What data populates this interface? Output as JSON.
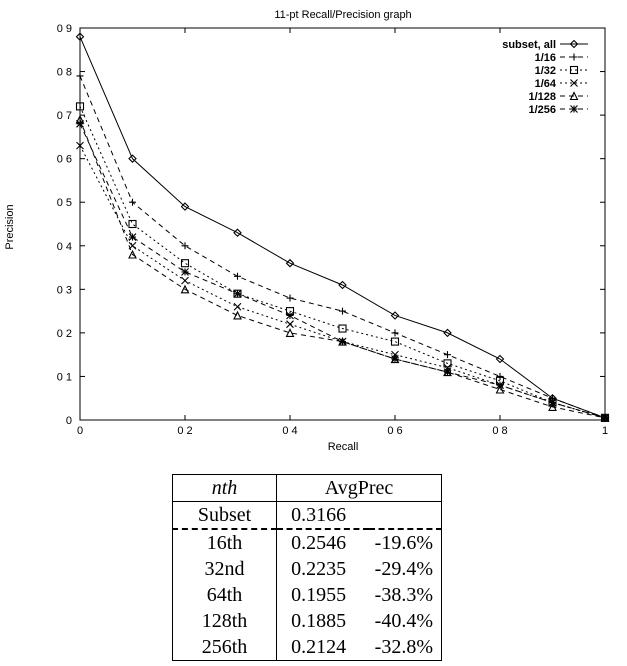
{
  "chart_data": {
    "type": "line",
    "title": "11-pt Recall/Precision graph",
    "xlabel": "Recall",
    "ylabel": "Precision",
    "xlim": [
      0,
      1
    ],
    "ylim": [
      0,
      0.9
    ],
    "xticks": [
      "0",
      "0 2",
      "0 4",
      "0 6",
      "0 8",
      "1"
    ],
    "yticks": [
      "0",
      "0 1",
      "0 2",
      "0 3",
      "0 4",
      "0 5",
      "0 6",
      "0 7",
      "0 8",
      "0 9"
    ],
    "grid": false,
    "legend_position": "top-right",
    "x": [
      0,
      0.1,
      0.2,
      0.3,
      0.4,
      0.5,
      0.6,
      0.7,
      0.8,
      0.9,
      1.0
    ],
    "series": [
      {
        "name": "subset, all",
        "marker": "diamond",
        "dash": "solid",
        "values": [
          0.88,
          0.6,
          0.49,
          0.43,
          0.36,
          0.31,
          0.24,
          0.2,
          0.14,
          0.05,
          0.005
        ]
      },
      {
        "name": "1/16",
        "marker": "plus",
        "dash": "dashed",
        "values": [
          0.79,
          0.5,
          0.4,
          0.33,
          0.28,
          0.25,
          0.2,
          0.15,
          0.1,
          0.05,
          0.005
        ]
      },
      {
        "name": "1/32",
        "marker": "square",
        "dash": "dotted",
        "values": [
          0.72,
          0.45,
          0.36,
          0.29,
          0.25,
          0.21,
          0.18,
          0.13,
          0.09,
          0.04,
          0.005
        ]
      },
      {
        "name": "1/64",
        "marker": "cross",
        "dash": "dotted",
        "values": [
          0.63,
          0.4,
          0.32,
          0.26,
          0.22,
          0.18,
          0.15,
          0.12,
          0.08,
          0.04,
          0.005
        ]
      },
      {
        "name": "1/128",
        "marker": "triangle",
        "dash": "dashed",
        "values": [
          0.69,
          0.38,
          0.3,
          0.24,
          0.2,
          0.18,
          0.14,
          0.11,
          0.07,
          0.03,
          0.005
        ]
      },
      {
        "name": "1/256",
        "marker": "star",
        "dash": "dashed",
        "values": [
          0.68,
          0.42,
          0.34,
          0.29,
          0.24,
          0.18,
          0.14,
          0.11,
          0.08,
          0.04,
          0.005
        ]
      }
    ]
  },
  "table": {
    "header": {
      "nth": "nth",
      "avgprec": "AvgPrec"
    },
    "rows": [
      {
        "nth": "Subset",
        "value": "0.3166",
        "change": ""
      },
      {
        "nth": "16th",
        "value": "0.2546",
        "change": "-19.6%"
      },
      {
        "nth": "32nd",
        "value": "0.2235",
        "change": "-29.4%"
      },
      {
        "nth": "64th",
        "value": "0.1955",
        "change": "-38.3%"
      },
      {
        "nth": "128th",
        "value": "0.1885",
        "change": "-40.4%"
      },
      {
        "nth": "256th",
        "value": "0.2124",
        "change": "-32.8%"
      }
    ]
  }
}
